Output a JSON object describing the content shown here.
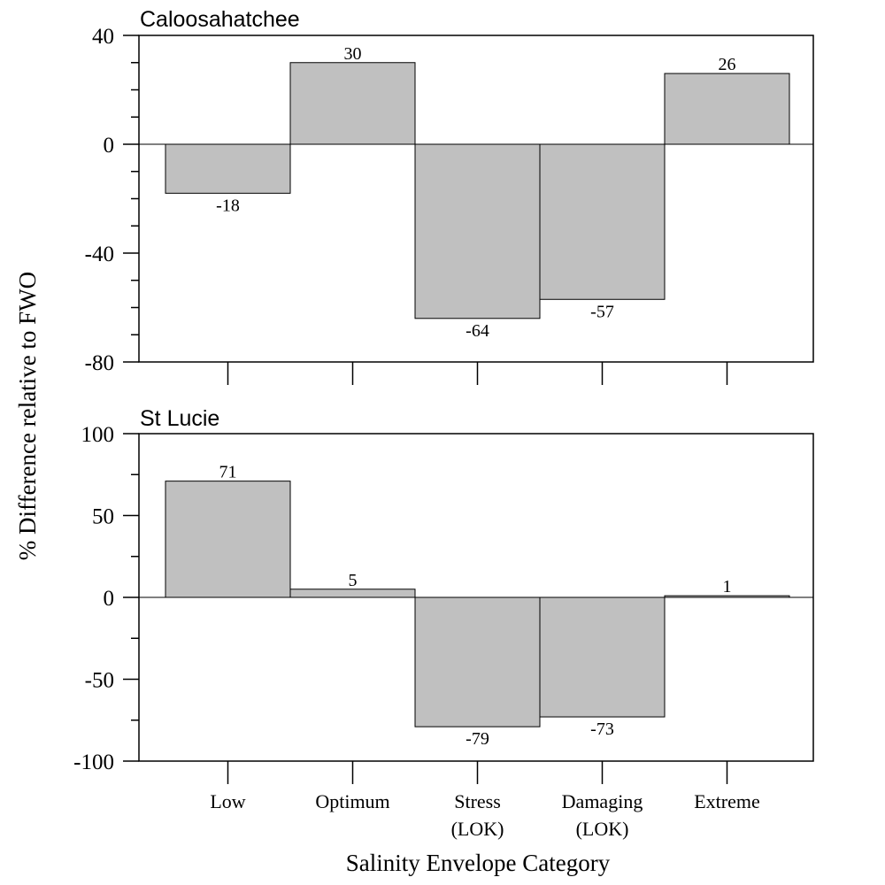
{
  "chart_data": [
    {
      "type": "bar",
      "title": "Caloosahatchee",
      "categories": [
        "Low",
        "Optimum",
        "Stress (LOK)",
        "Damaging (LOK)",
        "Extreme"
      ],
      "values": [
        -18,
        30,
        -64,
        -57,
        26
      ],
      "data_labels": [
        "-18",
        "30",
        "-64",
        "-57",
        "26"
      ],
      "yticks": [
        "40",
        "0",
        "-40",
        "-80"
      ],
      "ylim": [
        -80,
        40
      ],
      "bar_color": "#c0c0c0"
    },
    {
      "type": "bar",
      "title": "St Lucie",
      "categories": [
        "Low",
        "Optimum",
        "Stress (LOK)",
        "Damaging (LOK)",
        "Extreme"
      ],
      "values": [
        71,
        5,
        -79,
        -73,
        1
      ],
      "data_labels": [
        "71",
        "5",
        "-79",
        "-73",
        "1"
      ],
      "yticks": [
        "100",
        "50",
        "0",
        "-50",
        "-100"
      ],
      "ylim": [
        -100,
        100
      ],
      "bar_color": "#c0c0c0"
    }
  ],
  "ylabel": "% Difference relative to FWO",
  "xlabel": "Salinity Envelope Category",
  "category_labels": [
    [
      "Low"
    ],
    [
      "Optimum"
    ],
    [
      "Stress",
      "(LOK)"
    ],
    [
      "Damaging",
      "(LOK)"
    ],
    [
      "Extreme"
    ]
  ]
}
